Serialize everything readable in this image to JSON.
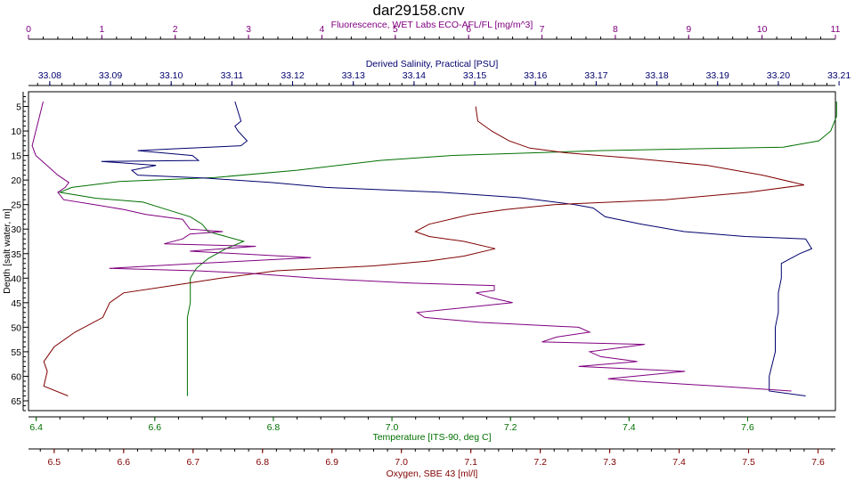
{
  "chart_data": {
    "type": "line",
    "title": "dar29158.cnv",
    "y_axis": {
      "label": "Depth [salt water, m]",
      "range": [
        2,
        67
      ],
      "inverted": true,
      "ticks": [
        "5",
        "10",
        "15",
        "20",
        "25",
        "30",
        "35",
        "40",
        "45",
        "50",
        "55",
        "60",
        "65"
      ],
      "color": "#000000"
    },
    "x_axes": [
      {
        "id": "fluorescence",
        "label": "Fluorescence, WET Labs ECO-AFL/FL [mg/m^3]",
        "position": "top-outer",
        "color": "#800080",
        "range": [
          0,
          11
        ],
        "ticks": [
          "0",
          "1",
          "2",
          "3",
          "4",
          "5",
          "6",
          "7",
          "8",
          "9",
          "10",
          "11"
        ]
      },
      {
        "id": "salinity",
        "label": "Derived Salinity, Practical [PSU]",
        "position": "top-inner",
        "color": "#00006e",
        "range": [
          33.0765,
          33.2094
        ],
        "ticks": [
          "33.08",
          "33.09",
          "33.10",
          "33.11",
          "33.12",
          "33.13",
          "33.14",
          "33.15",
          "33.16",
          "33.17",
          "33.18",
          "33.19",
          "33.20",
          "33.21"
        ]
      },
      {
        "id": "temperature",
        "label": "Temperature [ITS-90, deg C]",
        "position": "bottom-inner",
        "color": "#007000",
        "range": [
          6.387,
          7.748
        ],
        "ticks": [
          "6.4",
          "6.6",
          "6.8",
          "7.0",
          "7.2",
          "7.4",
          "7.6"
        ]
      },
      {
        "id": "oxygen",
        "label": "Oxygen, SBE 43 [ml/l]",
        "position": "bottom-outer",
        "color": "#800000",
        "range": [
          6.463,
          7.625
        ],
        "ticks": [
          "6.5",
          "6.6",
          "6.7",
          "6.8",
          "6.9",
          "7.0",
          "7.1",
          "7.2",
          "7.3",
          "7.4",
          "7.5",
          "7.6"
        ]
      }
    ],
    "grid": false,
    "series": [
      {
        "axis": "temperature",
        "color": "#007000",
        "points": [
          [
            7.75,
            4
          ],
          [
            7.75,
            7
          ],
          [
            7.74,
            10
          ],
          [
            7.72,
            12
          ],
          [
            7.66,
            13.3
          ],
          [
            7.35,
            14
          ],
          [
            7.1,
            15
          ],
          [
            6.98,
            16
          ],
          [
            6.84,
            18
          ],
          [
            6.7,
            19.5
          ],
          [
            6.54,
            20.3
          ],
          [
            6.46,
            21.5
          ],
          [
            6.44,
            22.5
          ],
          [
            6.5,
            23.7
          ],
          [
            6.58,
            24.5
          ],
          [
            6.62,
            26
          ],
          [
            6.66,
            27.5
          ],
          [
            6.68,
            29
          ],
          [
            6.69,
            30.5
          ],
          [
            6.72,
            31.5
          ],
          [
            6.75,
            32.5
          ],
          [
            6.72,
            34
          ],
          [
            6.69,
            36
          ],
          [
            6.67,
            38
          ],
          [
            6.66,
            40
          ],
          [
            6.66,
            42
          ],
          [
            6.66,
            45
          ],
          [
            6.655,
            48
          ],
          [
            6.655,
            52
          ],
          [
            6.655,
            56
          ],
          [
            6.655,
            60
          ],
          [
            6.655,
            64
          ]
        ]
      },
      {
        "axis": "salinity",
        "color": "#00006e",
        "points": [
          [
            33.1105,
            4
          ],
          [
            33.111,
            6
          ],
          [
            33.1115,
            8
          ],
          [
            33.1105,
            9
          ],
          [
            33.111,
            10
          ],
          [
            33.1125,
            12
          ],
          [
            33.1115,
            13
          ],
          [
            33.0995,
            13.7
          ],
          [
            33.0945,
            14
          ],
          [
            33.1035,
            15
          ],
          [
            33.1045,
            16
          ],
          [
            33.0885,
            16.2
          ],
          [
            33.0975,
            17
          ],
          [
            33.0935,
            18
          ],
          [
            33.0945,
            19
          ],
          [
            33.1055,
            19.6
          ],
          [
            33.1165,
            20.5
          ],
          [
            33.1255,
            21.5
          ],
          [
            33.1445,
            22.5
          ],
          [
            33.1575,
            23.6
          ],
          [
            33.1665,
            25
          ],
          [
            33.1695,
            25.7
          ],
          [
            33.1715,
            27.5
          ],
          [
            33.1775,
            29
          ],
          [
            33.1845,
            30.5
          ],
          [
            33.1945,
            31.5
          ],
          [
            33.2045,
            32
          ],
          [
            33.2055,
            34
          ],
          [
            33.2035,
            35
          ],
          [
            33.2005,
            37
          ],
          [
            33.2005,
            40
          ],
          [
            33.2,
            43
          ],
          [
            33.2,
            47
          ],
          [
            33.1995,
            50
          ],
          [
            33.1995,
            55
          ],
          [
            33.1985,
            60
          ],
          [
            33.1985,
            63
          ],
          [
            33.2045,
            64
          ]
        ]
      },
      {
        "axis": "oxygen",
        "color": "#800000",
        "points": [
          [
            7.107,
            5
          ],
          [
            7.11,
            8
          ],
          [
            7.13,
            10
          ],
          [
            7.155,
            12
          ],
          [
            7.185,
            13.5
          ],
          [
            7.24,
            14.5
          ],
          [
            7.33,
            15.5
          ],
          [
            7.44,
            17
          ],
          [
            7.52,
            19
          ],
          [
            7.58,
            21
          ],
          [
            7.5,
            22.5
          ],
          [
            7.38,
            24
          ],
          [
            7.22,
            25
          ],
          [
            7.15,
            26
          ],
          [
            7.1,
            27
          ],
          [
            7.04,
            29
          ],
          [
            7.02,
            30.5
          ],
          [
            7.04,
            31.5
          ],
          [
            7.09,
            32.5
          ],
          [
            7.135,
            34
          ],
          [
            7.09,
            35.5
          ],
          [
            7.04,
            36.5
          ],
          [
            6.96,
            37.5
          ],
          [
            6.82,
            38.5
          ],
          [
            6.74,
            40
          ],
          [
            6.67,
            41.5
          ],
          [
            6.6,
            43
          ],
          [
            6.58,
            45
          ],
          [
            6.57,
            48
          ],
          [
            6.53,
            51
          ],
          [
            6.5,
            54
          ],
          [
            6.485,
            57
          ],
          [
            6.49,
            59
          ],
          [
            6.485,
            62
          ],
          [
            6.52,
            64
          ]
        ]
      },
      {
        "axis": "fluorescence",
        "color": "#800080",
        "points": [
          [
            0.2,
            4
          ],
          [
            0.15,
            7
          ],
          [
            0.1,
            10
          ],
          [
            0.05,
            13
          ],
          [
            0.1,
            15
          ],
          [
            0.25,
            17
          ],
          [
            0.4,
            19
          ],
          [
            0.55,
            20.5
          ],
          [
            0.5,
            21.5
          ],
          [
            0.4,
            22.5
          ],
          [
            0.48,
            24
          ],
          [
            0.9,
            25
          ],
          [
            1.3,
            26
          ],
          [
            1.6,
            27
          ],
          [
            2.1,
            28
          ],
          [
            2.2,
            30
          ],
          [
            2.65,
            30.5
          ],
          [
            2.2,
            31
          ],
          [
            2.1,
            32
          ],
          [
            1.85,
            33
          ],
          [
            3.1,
            33.5
          ],
          [
            2.2,
            34.5
          ],
          [
            3.85,
            35.8
          ],
          [
            2.3,
            37
          ],
          [
            1.1,
            38
          ],
          [
            2.3,
            38.5
          ],
          [
            3.0,
            39
          ],
          [
            3.9,
            40
          ],
          [
            5.2,
            41
          ],
          [
            6.35,
            41.5
          ],
          [
            6.35,
            42.5
          ],
          [
            6.1,
            43
          ],
          [
            6.3,
            44
          ],
          [
            6.6,
            45
          ],
          [
            5.3,
            47
          ],
          [
            5.4,
            48
          ],
          [
            6.15,
            49
          ],
          [
            7.5,
            50
          ],
          [
            7.65,
            51
          ],
          [
            7.2,
            52
          ],
          [
            7.0,
            53
          ],
          [
            8.4,
            53.5
          ],
          [
            7.65,
            55
          ],
          [
            7.8,
            56
          ],
          [
            8.3,
            57
          ],
          [
            7.5,
            58
          ],
          [
            8.95,
            59
          ],
          [
            7.9,
            60.5
          ],
          [
            8.3,
            61
          ],
          [
            9.4,
            62
          ],
          [
            10.4,
            63
          ]
        ]
      }
    ]
  }
}
